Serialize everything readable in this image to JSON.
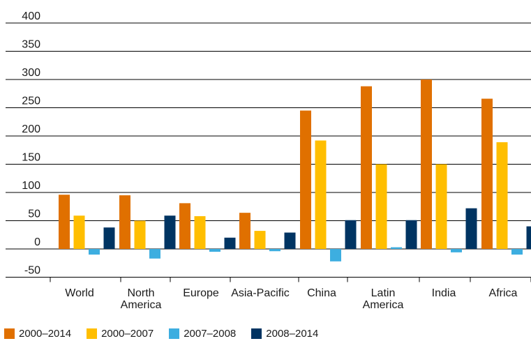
{
  "chart_data": {
    "type": "bar",
    "categories": [
      "World",
      "North\nAmerica",
      "Europe",
      "Asia-Pacific",
      "China",
      "Latin\nAmerica",
      "India",
      "Africa"
    ],
    "series": [
      {
        "name": "2000–2014",
        "color": "#E07000",
        "values": [
          96,
          95,
          81,
          64,
          245,
          288,
          300,
          266
        ]
      },
      {
        "name": "2000–2007",
        "color": "#FFBE00",
        "values": [
          59,
          50,
          58,
          32,
          192,
          150,
          150,
          189
        ]
      },
      {
        "name": "2007–2008",
        "color": "#3DAEE0",
        "values": [
          -10,
          -17,
          -5,
          -4,
          -22,
          3,
          -6,
          -10
        ]
      },
      {
        "name": "2008–2014",
        "color": "#003462",
        "values": [
          38,
          59,
          20,
          29,
          51,
          51,
          72,
          40
        ]
      }
    ],
    "ylim": [
      -50,
      400
    ],
    "yticks": [
      400,
      350,
      300,
      250,
      200,
      150,
      100,
      50,
      0,
      -50
    ],
    "grid": true,
    "legend_position": "bottom-left"
  }
}
